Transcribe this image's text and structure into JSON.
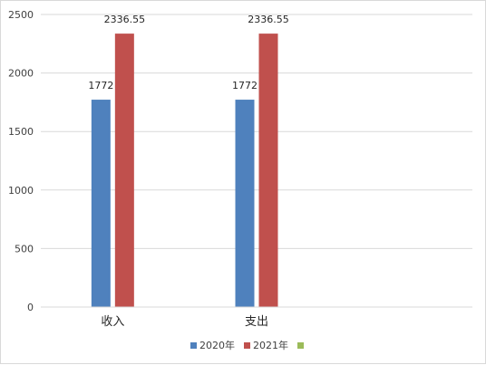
{
  "chart_data": {
    "type": "bar",
    "categories": [
      "收入",
      "支出",
      ""
    ],
    "series": [
      {
        "name": "2020年",
        "values": [
          1772,
          1772,
          null
        ],
        "color": "#4f81bd"
      },
      {
        "name": "2021年",
        "values": [
          2336.55,
          2336.55,
          null
        ],
        "color": "#c0504d"
      },
      {
        "name": "",
        "values": [
          null,
          null,
          null
        ],
        "color": "#9bbb59"
      }
    ],
    "data_labels": [
      [
        "1772",
        "1772",
        ""
      ],
      [
        "2336.55",
        "2336.55",
        ""
      ],
      [
        "",
        "",
        ""
      ]
    ],
    "ylim": [
      0,
      2500
    ],
    "yticks": [
      0,
      500,
      1000,
      1500,
      2000,
      2500
    ],
    "grid": true,
    "legend_position": "bottom",
    "title": "",
    "xlabel": "",
    "ylabel": ""
  }
}
